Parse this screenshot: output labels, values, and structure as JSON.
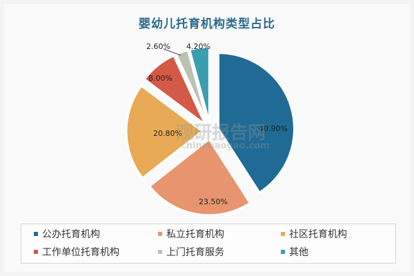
{
  "chart_data": {
    "type": "pie",
    "title": "婴幼儿托育机构类型占比",
    "categories": [
      "公办托育机构",
      "私立托育机构",
      "社区托育机构",
      "工作单位托育机构",
      "上门托育服务",
      "其他"
    ],
    "values": [
      40.9,
      23.5,
      20.8,
      8.0,
      2.6,
      4.2
    ],
    "labels": [
      "40.90%",
      "23.50%",
      "20.80%",
      "8.00%",
      "2.60%",
      "4.20%"
    ],
    "colors": [
      "#1f6b95",
      "#e8956f",
      "#e8aa55",
      "#d45a48",
      "#bcc2b3",
      "#3a9fb0"
    ],
    "exploded": true,
    "legend_position": "bottom"
  },
  "watermark": {
    "main": "观研报告网",
    "sub": "chinabaogao.com"
  }
}
